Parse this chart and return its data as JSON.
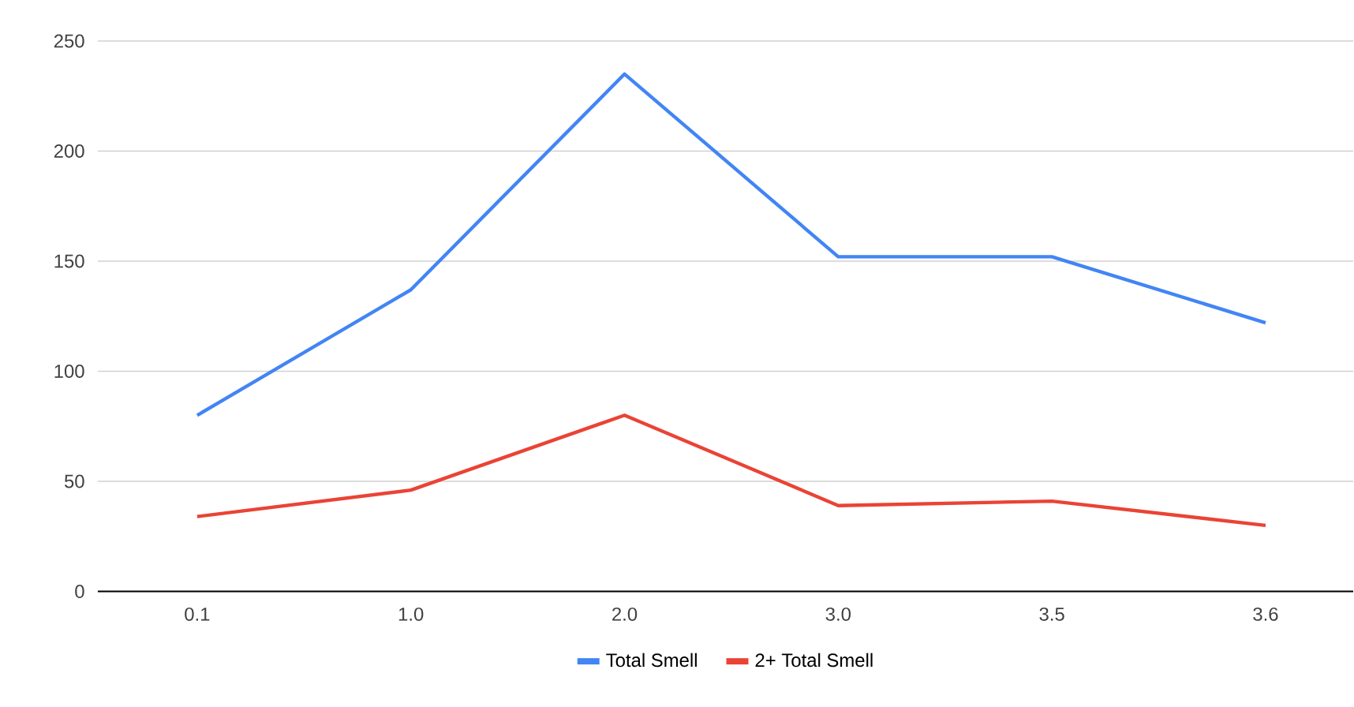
{
  "chart_data": {
    "type": "line",
    "categories": [
      "0.1",
      "1.0",
      "2.0",
      "3.0",
      "3.5",
      "3.6"
    ],
    "series": [
      {
        "name": "Total Smell",
        "color": "#4285f4",
        "values": [
          80,
          137,
          235,
          152,
          152,
          122
        ]
      },
      {
        "name": "2+ Total Smell",
        "color": "#ea4335",
        "values": [
          34,
          46,
          80,
          39,
          41,
          30
        ]
      }
    ],
    "ylim": [
      0,
      250
    ],
    "yticks": [
      0,
      50,
      100,
      150,
      200,
      250
    ],
    "grid": "y",
    "legend": "bottom",
    "marker": "none",
    "line_style": "solid"
  }
}
